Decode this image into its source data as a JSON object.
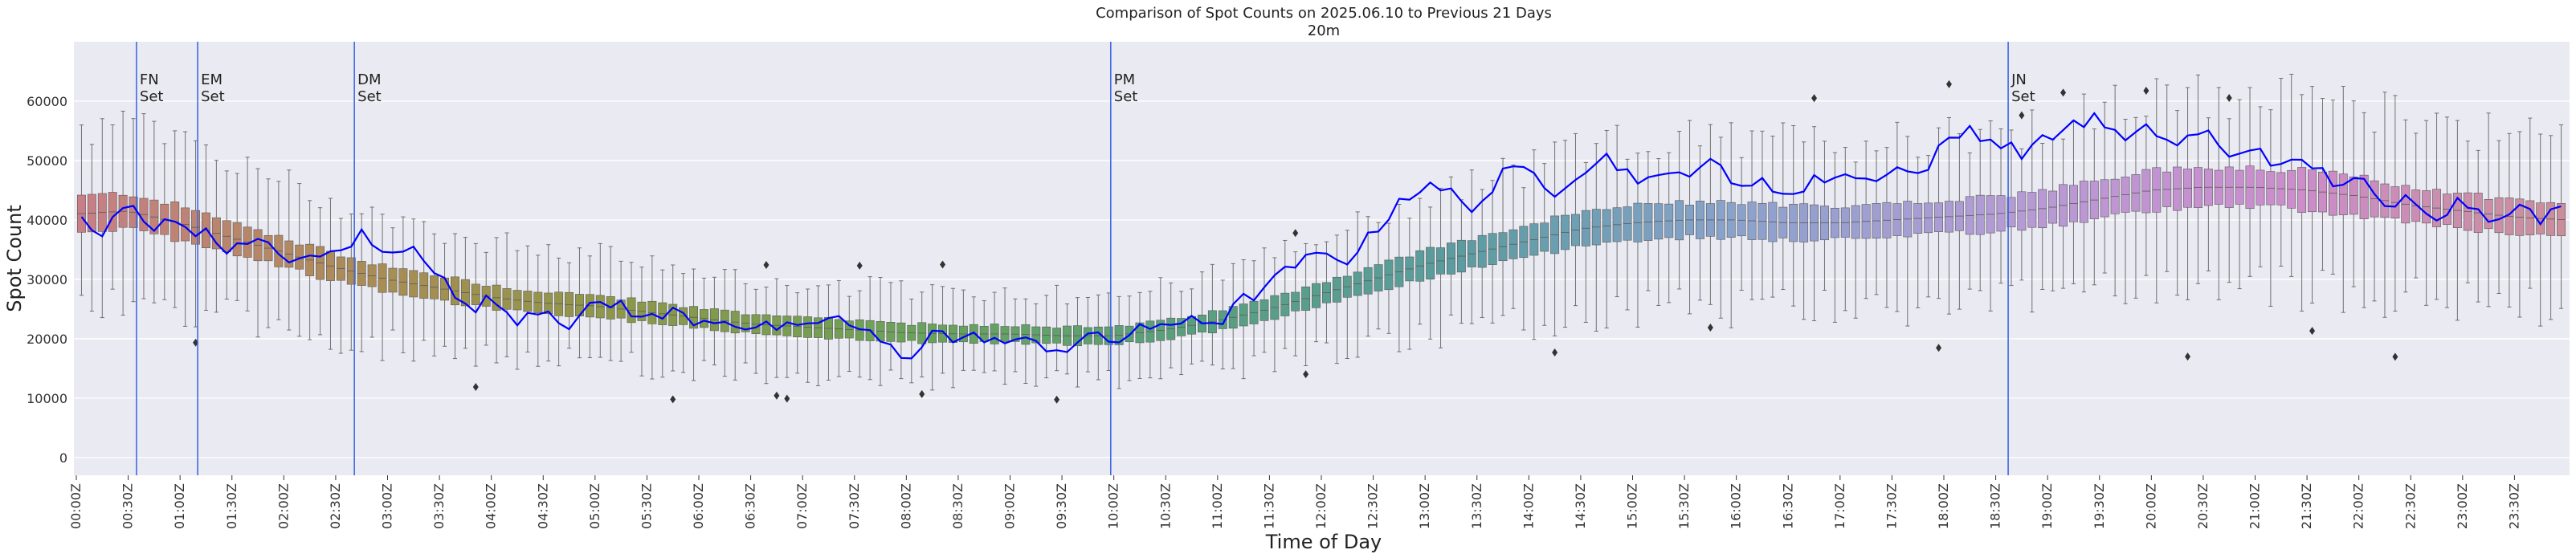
{
  "chart_data": {
    "type": "box",
    "title": "Comparison of Spot Counts on 2025.06.10 to Previous 21 Days",
    "subtitle": "20m",
    "xlabel": "Time of Day",
    "ylabel": "Spot Count",
    "ylim": [
      -3000,
      70000
    ],
    "yticks": [
      0,
      10000,
      20000,
      30000,
      40000,
      50000,
      60000
    ],
    "bin_minutes": 6,
    "num_bins": 240,
    "xtick_labels": [
      "00:00Z",
      "00:30Z",
      "01:00Z",
      "01:30Z",
      "02:00Z",
      "02:30Z",
      "03:00Z",
      "03:30Z",
      "04:00Z",
      "04:30Z",
      "05:00Z",
      "05:30Z",
      "06:00Z",
      "06:30Z",
      "07:00Z",
      "07:30Z",
      "08:00Z",
      "08:30Z",
      "09:00Z",
      "09:30Z",
      "10:00Z",
      "10:30Z",
      "11:00Z",
      "11:30Z",
      "12:00Z",
      "12:30Z",
      "13:00Z",
      "13:30Z",
      "14:00Z",
      "14:30Z",
      "15:00Z",
      "15:30Z",
      "16:00Z",
      "16:30Z",
      "17:00Z",
      "17:30Z",
      "18:00Z",
      "18:30Z",
      "19:00Z",
      "19:30Z",
      "20:00Z",
      "20:30Z",
      "21:00Z",
      "21:30Z",
      "22:00Z",
      "22:30Z",
      "23:00Z",
      "23:30Z"
    ],
    "median_profile": [
      {
        "hour": 0.0,
        "median": 41000
      },
      {
        "hour": 0.5,
        "median": 41500
      },
      {
        "hour": 1.0,
        "median": 39500
      },
      {
        "hour": 1.5,
        "median": 37000
      },
      {
        "hour": 2.0,
        "median": 34500
      },
      {
        "hour": 2.5,
        "median": 32000
      },
      {
        "hour": 3.0,
        "median": 30000
      },
      {
        "hour": 3.5,
        "median": 28500
      },
      {
        "hour": 4.0,
        "median": 27000
      },
      {
        "hour": 4.5,
        "median": 26000
      },
      {
        "hour": 5.0,
        "median": 25500
      },
      {
        "hour": 5.5,
        "median": 24500
      },
      {
        "hour": 6.0,
        "median": 23500
      },
      {
        "hour": 6.5,
        "median": 22500
      },
      {
        "hour": 7.0,
        "median": 22000
      },
      {
        "hour": 7.5,
        "median": 21500
      },
      {
        "hour": 8.0,
        "median": 21000
      },
      {
        "hour": 8.5,
        "median": 20800
      },
      {
        "hour": 9.0,
        "median": 20800
      },
      {
        "hour": 9.5,
        "median": 20500
      },
      {
        "hour": 10.0,
        "median": 20500
      },
      {
        "hour": 10.5,
        "median": 21500
      },
      {
        "hour": 11.0,
        "median": 23000
      },
      {
        "hour": 11.5,
        "median": 25000
      },
      {
        "hour": 12.0,
        "median": 27500
      },
      {
        "hour": 12.5,
        "median": 30000
      },
      {
        "hour": 13.0,
        "median": 32500
      },
      {
        "hour": 13.5,
        "median": 34500
      },
      {
        "hour": 14.0,
        "median": 36500
      },
      {
        "hour": 14.5,
        "median": 38500
      },
      {
        "hour": 15.0,
        "median": 39500
      },
      {
        "hour": 15.5,
        "median": 40000
      },
      {
        "hour": 16.0,
        "median": 40000
      },
      {
        "hour": 16.5,
        "median": 39500
      },
      {
        "hour": 17.0,
        "median": 39500
      },
      {
        "hour": 17.5,
        "median": 40000
      },
      {
        "hour": 18.0,
        "median": 40500
      },
      {
        "hour": 18.5,
        "median": 41000
      },
      {
        "hour": 19.0,
        "median": 42000
      },
      {
        "hour": 19.5,
        "median": 43500
      },
      {
        "hour": 20.0,
        "median": 45000
      },
      {
        "hour": 20.5,
        "median": 45500
      },
      {
        "hour": 21.0,
        "median": 45500
      },
      {
        "hour": 21.5,
        "median": 45000
      },
      {
        "hour": 22.0,
        "median": 44000
      },
      {
        "hour": 22.5,
        "median": 42500
      },
      {
        "hour": 23.0,
        "median": 41500
      },
      {
        "hour": 23.5,
        "median": 40500
      },
      {
        "hour": 24.0,
        "median": 40000
      }
    ],
    "today_series": {
      "name": "2025.06.10",
      "color": "#0000ff",
      "points": [
        {
          "hour": 0.0,
          "value": 40500
        },
        {
          "hour": 0.25,
          "value": 37000
        },
        {
          "hour": 0.5,
          "value": 44000
        },
        {
          "hour": 0.75,
          "value": 38500
        },
        {
          "hour": 1.0,
          "value": 40000
        },
        {
          "hour": 1.25,
          "value": 37500
        },
        {
          "hour": 1.5,
          "value": 35000
        },
        {
          "hour": 1.75,
          "value": 36000
        },
        {
          "hour": 2.0,
          "value": 34000
        },
        {
          "hour": 2.25,
          "value": 33000
        },
        {
          "hour": 2.5,
          "value": 34500
        },
        {
          "hour": 2.75,
          "value": 37500
        },
        {
          "hour": 3.0,
          "value": 33500
        },
        {
          "hour": 3.25,
          "value": 36500
        },
        {
          "hour": 3.5,
          "value": 30500
        },
        {
          "hour": 3.75,
          "value": 25000
        },
        {
          "hour": 4.0,
          "value": 26500
        },
        {
          "hour": 4.25,
          "value": 23500
        },
        {
          "hour": 4.5,
          "value": 25500
        },
        {
          "hour": 4.75,
          "value": 22500
        },
        {
          "hour": 5.0,
          "value": 25500
        },
        {
          "hour": 5.25,
          "value": 26000
        },
        {
          "hour": 5.5,
          "value": 23000
        },
        {
          "hour": 5.75,
          "value": 24500
        },
        {
          "hour": 6.0,
          "value": 23000
        },
        {
          "hour": 6.25,
          "value": 23500
        },
        {
          "hour": 6.5,
          "value": 21500
        },
        {
          "hour": 6.75,
          "value": 22000
        },
        {
          "hour": 7.0,
          "value": 21000
        },
        {
          "hour": 7.25,
          "value": 24000
        },
        {
          "hour": 7.5,
          "value": 22000
        },
        {
          "hour": 7.75,
          "value": 19500
        },
        {
          "hour": 8.0,
          "value": 16500
        },
        {
          "hour": 8.25,
          "value": 21500
        },
        {
          "hour": 8.5,
          "value": 19500
        },
        {
          "hour": 8.75,
          "value": 20500
        },
        {
          "hour": 9.0,
          "value": 19000
        },
        {
          "hour": 9.25,
          "value": 19500
        },
        {
          "hour": 9.5,
          "value": 18000
        },
        {
          "hour": 9.75,
          "value": 20500
        },
        {
          "hour": 10.0,
          "value": 19000
        },
        {
          "hour": 10.25,
          "value": 22500
        },
        {
          "hour": 10.5,
          "value": 21000
        },
        {
          "hour": 10.75,
          "value": 24000
        },
        {
          "hour": 11.0,
          "value": 22500
        },
        {
          "hour": 11.25,
          "value": 26500
        },
        {
          "hour": 11.5,
          "value": 29000
        },
        {
          "hour": 11.75,
          "value": 32500
        },
        {
          "hour": 12.0,
          "value": 34000
        },
        {
          "hour": 12.25,
          "value": 33500
        },
        {
          "hour": 12.5,
          "value": 37500
        },
        {
          "hour": 12.75,
          "value": 43500
        },
        {
          "hour": 13.0,
          "value": 45500
        },
        {
          "hour": 13.25,
          "value": 44500
        },
        {
          "hour": 13.5,
          "value": 42000
        },
        {
          "hour": 13.75,
          "value": 47500
        },
        {
          "hour": 14.0,
          "value": 48500
        },
        {
          "hour": 14.25,
          "value": 45000
        },
        {
          "hour": 14.5,
          "value": 48500
        },
        {
          "hour": 14.75,
          "value": 50500
        },
        {
          "hour": 15.0,
          "value": 47500
        },
        {
          "hour": 15.25,
          "value": 46500
        },
        {
          "hour": 15.5,
          "value": 48000
        },
        {
          "hour": 15.75,
          "value": 50500
        },
        {
          "hour": 16.0,
          "value": 44500
        },
        {
          "hour": 16.25,
          "value": 47500
        },
        {
          "hour": 16.5,
          "value": 43500
        },
        {
          "hour": 16.75,
          "value": 46500
        },
        {
          "hour": 17.0,
          "value": 48000
        },
        {
          "hour": 17.25,
          "value": 46500
        },
        {
          "hour": 17.5,
          "value": 49000
        },
        {
          "hour": 17.75,
          "value": 47500
        },
        {
          "hour": 18.0,
          "value": 52500
        },
        {
          "hour": 18.25,
          "value": 55500
        },
        {
          "hour": 18.5,
          "value": 53000
        },
        {
          "hour": 18.75,
          "value": 51500
        },
        {
          "hour": 19.0,
          "value": 53500
        },
        {
          "hour": 19.25,
          "value": 56500
        },
        {
          "hour": 19.5,
          "value": 57000
        },
        {
          "hour": 19.75,
          "value": 53000
        },
        {
          "hour": 20.0,
          "value": 55500
        },
        {
          "hour": 20.25,
          "value": 52500
        },
        {
          "hour": 20.5,
          "value": 55500
        },
        {
          "hour": 20.75,
          "value": 50000
        },
        {
          "hour": 21.0,
          "value": 53000
        },
        {
          "hour": 21.25,
          "value": 48500
        },
        {
          "hour": 21.5,
          "value": 50000
        },
        {
          "hour": 21.75,
          "value": 46500
        },
        {
          "hour": 22.0,
          "value": 47000
        },
        {
          "hour": 22.25,
          "value": 41500
        },
        {
          "hour": 22.5,
          "value": 44000
        },
        {
          "hour": 22.75,
          "value": 41000
        },
        {
          "hour": 23.0,
          "value": 43500
        },
        {
          "hour": 23.25,
          "value": 40500
        },
        {
          "hour": 23.5,
          "value": 42500
        },
        {
          "hour": 23.75,
          "value": 40000
        },
        {
          "hour": 24.0,
          "value": 42000
        }
      ]
    },
    "event_lines": [
      {
        "hour": 0.58,
        "label_line1": "FN",
        "label_line2": "Set",
        "color": "#4169e1"
      },
      {
        "hour": 1.17,
        "label_line1": "EM",
        "label_line2": "Set",
        "color": "#4169e1"
      },
      {
        "hour": 2.68,
        "label_line1": "DM",
        "label_line2": "Set",
        "color": "#4169e1"
      },
      {
        "hour": 9.97,
        "label_line1": "PM",
        "label_line2": "Set",
        "color": "#4169e1"
      },
      {
        "hour": 18.62,
        "label_line1": "JN",
        "label_line2": "Set",
        "color": "#4169e1"
      }
    ],
    "style": {
      "plot_background": "#eaeaf2",
      "grid_color": "#ffffff",
      "whisker_color": "#707070",
      "outlier_color": "#333333",
      "palette_stops": [
        "#c97e86",
        "#ab8c55",
        "#8b9848",
        "#6aa258",
        "#58a07c",
        "#5a9ca0",
        "#8aa2cc",
        "#b59bd6",
        "#cc8dcc",
        "#c98e9a"
      ]
    }
  }
}
